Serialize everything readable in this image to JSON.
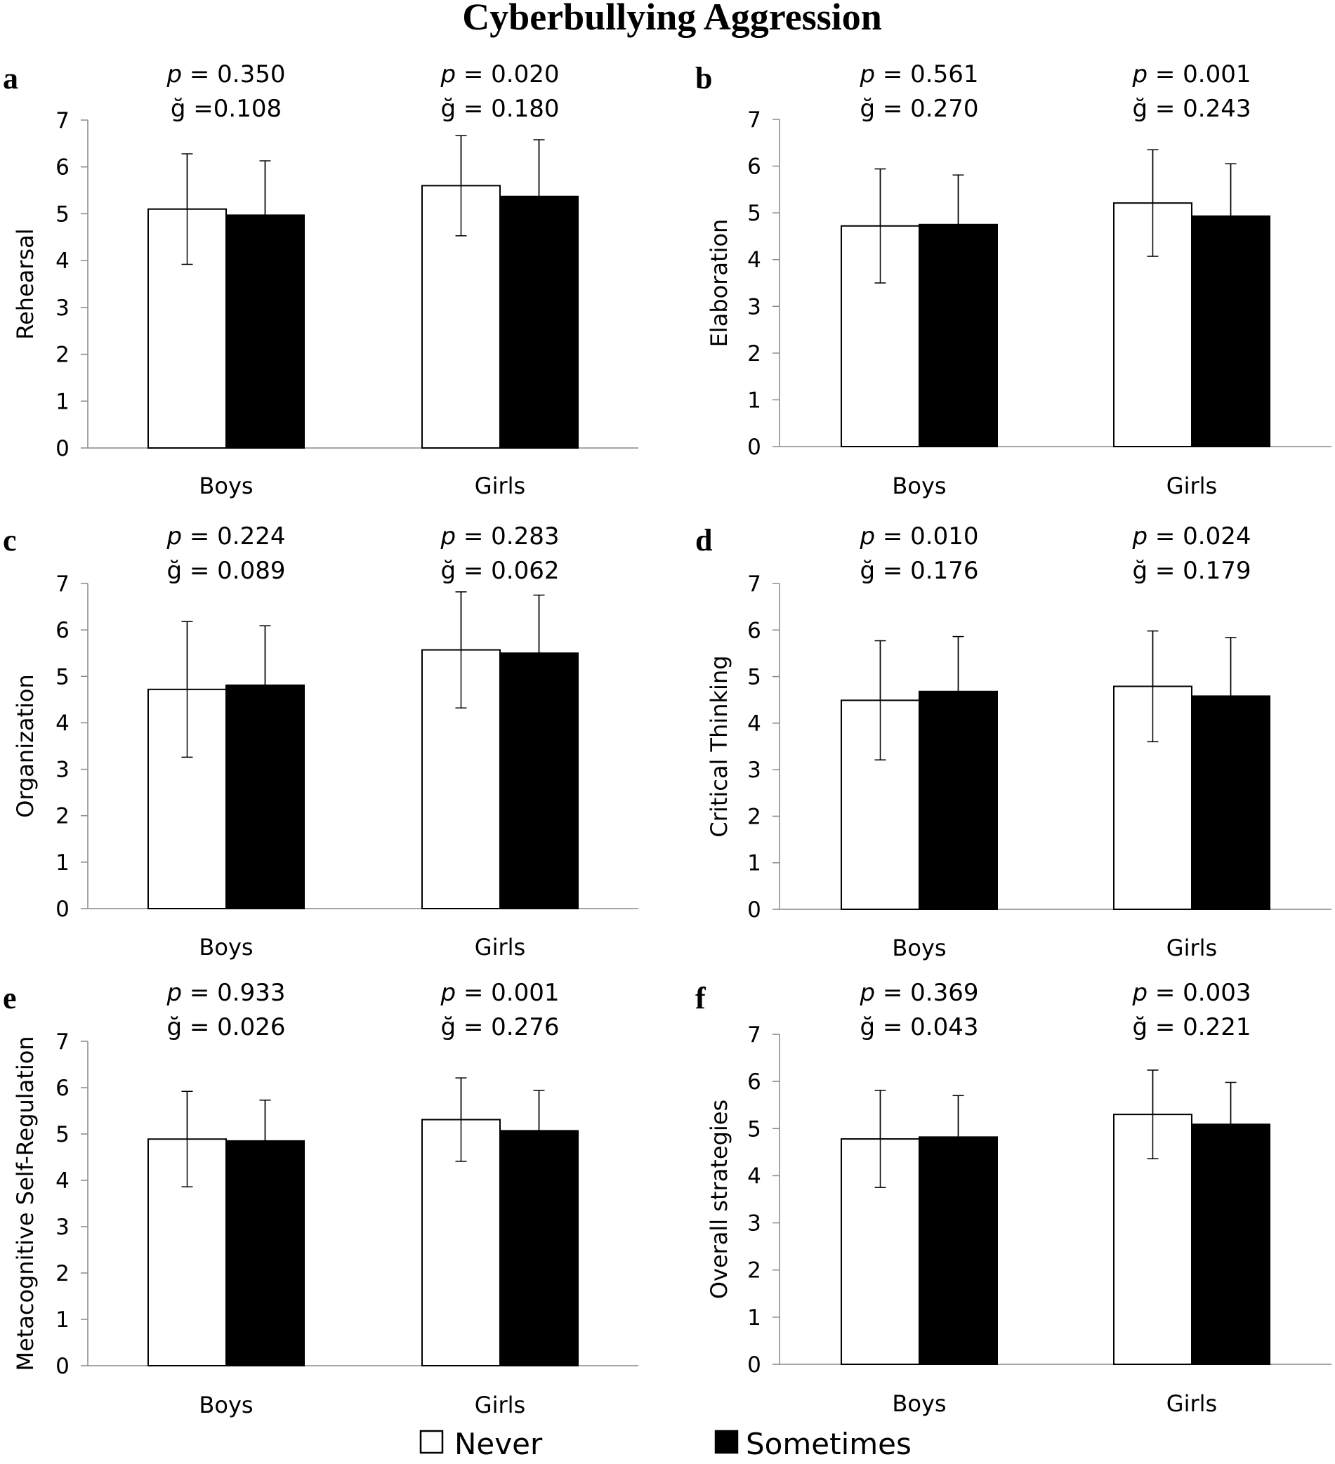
{
  "figure": {
    "title": "Cyberbullying Aggression"
  },
  "legend": [
    {
      "name": "Never",
      "color": "#ffffff"
    },
    {
      "name": "Sometimes",
      "color": "#000000"
    }
  ],
  "chart_data": [
    {
      "panel": "a",
      "type": "bar",
      "ylabel": "Rehearsal",
      "ylim": [
        0,
        7
      ],
      "yticks": [
        0,
        1,
        2,
        3,
        4,
        5,
        6,
        7
      ],
      "categories": [
        "Boys",
        "Girls"
      ],
      "stats": [
        {
          "p": "0.350",
          "g": "=0.108"
        },
        {
          "p": "0.020",
          "g": "= 0.180"
        }
      ],
      "series": [
        {
          "name": "Never",
          "values": [
            5.1,
            5.6
          ],
          "errors": [
            1.18,
            1.07
          ]
        },
        {
          "name": "Sometimes",
          "values": [
            4.97,
            5.37
          ],
          "errors": [
            1.16,
            1.21
          ]
        }
      ]
    },
    {
      "panel": "b",
      "type": "bar",
      "ylabel": "Elaboration",
      "ylim": [
        0,
        7
      ],
      "yticks": [
        0,
        1,
        2,
        3,
        4,
        5,
        6,
        7
      ],
      "categories": [
        "Boys",
        "Girls"
      ],
      "stats": [
        {
          "p": "0.561",
          "g": "= 0.270"
        },
        {
          "p": "0.001",
          "g": "= 0.243"
        }
      ],
      "series": [
        {
          "name": "Never",
          "values": [
            4.72,
            5.21
          ],
          "errors": [
            1.22,
            1.14
          ]
        },
        {
          "name": "Sometimes",
          "values": [
            4.75,
            4.93
          ],
          "errors": [
            1.06,
            1.12
          ]
        }
      ]
    },
    {
      "panel": "c",
      "type": "bar",
      "ylabel": "Organization",
      "ylim": [
        0,
        7
      ],
      "yticks": [
        0,
        1,
        2,
        3,
        4,
        5,
        6,
        7
      ],
      "categories": [
        "Boys",
        "Girls"
      ],
      "stats": [
        {
          "p": "0.224",
          "g": "= 0.089"
        },
        {
          "p": "0.283",
          "g": "= 0.062"
        }
      ],
      "series": [
        {
          "name": "Never",
          "values": [
            4.72,
            5.57
          ],
          "errors": [
            1.46,
            1.25
          ]
        },
        {
          "name": "Sometimes",
          "values": [
            4.81,
            5.5
          ],
          "errors": [
            1.28,
            1.25
          ]
        }
      ]
    },
    {
      "panel": "d",
      "type": "bar",
      "ylabel": "Critical Thinking",
      "ylim": [
        0,
        7
      ],
      "yticks": [
        0,
        1,
        2,
        3,
        4,
        5,
        6,
        7
      ],
      "categories": [
        "Boys",
        "Girls"
      ],
      "stats": [
        {
          "p": "0.010",
          "g": "= 0.176"
        },
        {
          "p": "0.024",
          "g": "= 0.179"
        }
      ],
      "series": [
        {
          "name": "Never",
          "values": [
            4.49,
            4.79
          ],
          "errors": [
            1.28,
            1.19
          ]
        },
        {
          "name": "Sometimes",
          "values": [
            4.68,
            4.58
          ],
          "errors": [
            1.18,
            1.26
          ]
        }
      ]
    },
    {
      "panel": "e",
      "type": "bar",
      "ylabel": "Metacognitive Self-Regulation",
      "ylim": [
        0,
        7
      ],
      "yticks": [
        0,
        1,
        2,
        3,
        4,
        5,
        6,
        7
      ],
      "categories": [
        "Boys",
        "Girls"
      ],
      "stats": [
        {
          "p": "0.933",
          "g": "= 0.026"
        },
        {
          "p": "0.001",
          "g": "= 0.276"
        }
      ],
      "series": [
        {
          "name": "Never",
          "values": [
            4.89,
            5.31
          ],
          "errors": [
            1.03,
            0.9
          ]
        },
        {
          "name": "Sometimes",
          "values": [
            4.85,
            5.07
          ],
          "errors": [
            0.88,
            0.87
          ]
        }
      ]
    },
    {
      "panel": "f",
      "type": "bar",
      "ylabel": "Overall strategies",
      "ylim": [
        0,
        7
      ],
      "yticks": [
        0,
        1,
        2,
        3,
        4,
        5,
        6,
        7
      ],
      "categories": [
        "Boys",
        "Girls"
      ],
      "stats": [
        {
          "p": "0.369",
          "g": "= 0.043"
        },
        {
          "p": "0.003",
          "g": "= 0.221"
        }
      ],
      "series": [
        {
          "name": "Never",
          "values": [
            4.78,
            5.3
          ],
          "errors": [
            1.03,
            0.94
          ]
        },
        {
          "name": "Sometimes",
          "values": [
            4.82,
            5.09
          ],
          "errors": [
            0.88,
            0.89
          ]
        }
      ]
    }
  ]
}
